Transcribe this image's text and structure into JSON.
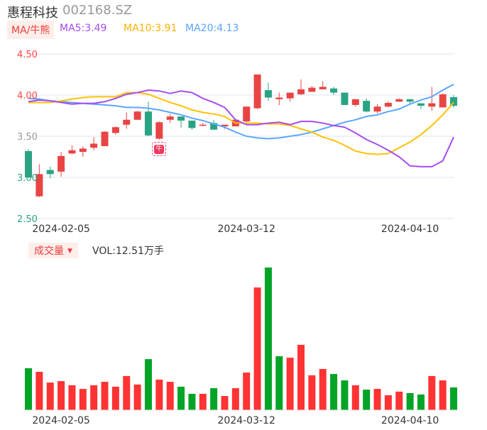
{
  "header": {
    "name": "惠程科技",
    "code": "002168.SZ"
  },
  "legend": {
    "ma_button": "MA/牛熊",
    "ma5": "MA5:3.49",
    "ma10": "MA10:3.91",
    "ma20": "MA20:4.13"
  },
  "volume_legend": {
    "button": "成交量",
    "caret": "▼",
    "vol": "VOL:12.51万手"
  },
  "marker": {
    "icon": "bull-icon",
    "label": "牛"
  },
  "colors": {
    "up": "#e84444",
    "down": "#2aa384",
    "vol_up": "#ff3333",
    "vol_down": "#00a427",
    "ma5": "#a64df0",
    "ma10": "#ffc107",
    "ma20": "#5aa6ff",
    "grid": "#dde3ef"
  },
  "chart_data": {
    "type": "candlestick",
    "y_ticks": [
      "4.50",
      "4.00",
      "3.50",
      "3.00",
      "2.50"
    ],
    "y_tick_values": [
      4.5,
      4.0,
      3.5,
      3.0,
      2.5
    ],
    "ylim": [
      2.5,
      4.5
    ],
    "x_labels": [
      {
        "index": 3,
        "text": "2024-02-05"
      },
      {
        "index": 20,
        "text": "2024-03-12"
      },
      {
        "index": 35,
        "text": "2024-04-10"
      }
    ],
    "candles": [
      [
        3.32,
        3.0,
        3.34,
        2.99
      ],
      [
        2.77,
        3.04,
        3.16,
        2.76
      ],
      [
        3.09,
        3.04,
        3.13,
        2.99
      ],
      [
        3.07,
        3.26,
        3.31,
        3.01
      ],
      [
        3.29,
        3.33,
        3.39,
        3.28
      ],
      [
        3.31,
        3.35,
        3.38,
        3.25
      ],
      [
        3.36,
        3.41,
        3.49,
        3.33
      ],
      [
        3.38,
        3.555,
        3.56,
        3.38
      ],
      [
        3.54,
        3.61,
        3.62,
        3.52
      ],
      [
        3.64,
        3.7,
        3.79,
        3.59
      ],
      [
        3.7,
        3.8,
        3.81,
        3.7
      ],
      [
        3.8,
        3.51,
        3.92,
        3.5
      ],
      [
        3.47,
        3.67,
        3.68,
        3.46
      ],
      [
        3.7,
        3.74,
        3.77,
        3.66
      ],
      [
        3.74,
        3.69,
        3.74,
        3.6
      ],
      [
        3.69,
        3.6,
        3.69,
        3.58
      ],
      [
        3.63,
        3.64,
        3.66,
        3.62
      ],
      [
        3.66,
        3.58,
        3.7,
        3.58
      ],
      [
        3.62,
        3.64,
        3.64,
        3.59
      ],
      [
        3.62,
        3.7,
        3.7,
        3.62
      ],
      [
        3.68,
        3.86,
        3.86,
        3.67
      ],
      [
        3.84,
        4.25,
        4.25,
        3.83
      ],
      [
        4.06,
        3.97,
        4.15,
        3.93
      ],
      [
        3.95,
        3.97,
        4.03,
        3.88
      ],
      [
        3.96,
        4.03,
        4.03,
        3.92
      ],
      [
        4.01,
        4.07,
        4.19,
        4.0
      ],
      [
        4.04,
        4.09,
        4.11,
        4.04
      ],
      [
        4.07,
        4.1,
        4.17,
        4.07
      ],
      [
        4.08,
        4.03,
        4.1,
        4.0
      ],
      [
        4.03,
        3.88,
        4.03,
        3.88
      ],
      [
        3.88,
        3.95,
        3.95,
        3.86
      ],
      [
        3.93,
        3.8,
        3.96,
        3.79
      ],
      [
        3.8,
        3.86,
        3.89,
        3.78
      ],
      [
        3.86,
        3.905,
        3.92,
        3.85
      ],
      [
        3.92,
        3.95,
        3.96,
        3.92
      ],
      [
        3.95,
        3.92,
        3.95,
        3.88
      ],
      [
        3.9,
        3.87,
        3.9,
        3.83
      ],
      [
        3.86,
        3.9,
        4.1,
        3.81
      ],
      [
        3.85,
        4.01,
        4.02,
        3.85
      ],
      [
        3.975,
        3.87,
        4.0,
        3.85
      ]
    ],
    "ma5": [
      3.92,
      3.94,
      3.93,
      3.91,
      3.89,
      3.9,
      3.9,
      3.92,
      3.96,
      4.01,
      4.03,
      4.06,
      4.05,
      4.02,
      4.05,
      4.03,
      3.96,
      3.91,
      3.85,
      3.7,
      3.64,
      3.64,
      3.66,
      3.67,
      3.64,
      3.68,
      3.68,
      3.66,
      3.63,
      3.61,
      3.54,
      3.46,
      3.4,
      3.33,
      3.25,
      3.14,
      3.13,
      3.13,
      3.2,
      3.49
    ],
    "ma10": [
      3.91,
      3.91,
      3.91,
      3.93,
      3.95,
      3.97,
      3.98,
      3.98,
      3.98,
      4.03,
      4.03,
      4.01,
      3.96,
      3.91,
      3.87,
      3.82,
      3.79,
      3.77,
      3.74,
      3.66,
      3.66,
      3.66,
      3.65,
      3.65,
      3.63,
      3.59,
      3.55,
      3.49,
      3.45,
      3.39,
      3.32,
      3.29,
      3.28,
      3.29,
      3.36,
      3.43,
      3.52,
      3.63,
      3.76,
      3.91
    ],
    "ma20": [
      3.96,
      3.95,
      3.93,
      3.92,
      3.91,
      3.9,
      3.89,
      3.88,
      3.87,
      3.85,
      3.85,
      3.84,
      3.82,
      3.79,
      3.76,
      3.72,
      3.69,
      3.65,
      3.61,
      3.55,
      3.5,
      3.48,
      3.47,
      3.48,
      3.5,
      3.52,
      3.55,
      3.59,
      3.63,
      3.67,
      3.7,
      3.74,
      3.76,
      3.8,
      3.83,
      3.89,
      3.94,
      3.98,
      4.06,
      4.13
    ],
    "volume_unit": "万手",
    "volume": [
      23.1,
      21.1,
      15.2,
      16.0,
      13.7,
      11.7,
      13.7,
      15.6,
      12.9,
      18.8,
      14.1,
      28.1,
      16.8,
      15.6,
      12.9,
      9.0,
      9.0,
      12.1,
      7.8,
      12.1,
      20.7,
      67.6,
      78.6,
      29.7,
      28.9,
      36.0,
      19.2,
      22.7,
      19.9,
      16.4,
      13.7,
      11.3,
      11.7,
      8.2,
      10.2,
      9.4,
      8.6,
      18.8,
      16.4,
      12.51
    ],
    "volume_dir": "GRRRRRRRRRRGRRGGRGRRRRGGRRRRGGRGRRRGGRRG"
  }
}
